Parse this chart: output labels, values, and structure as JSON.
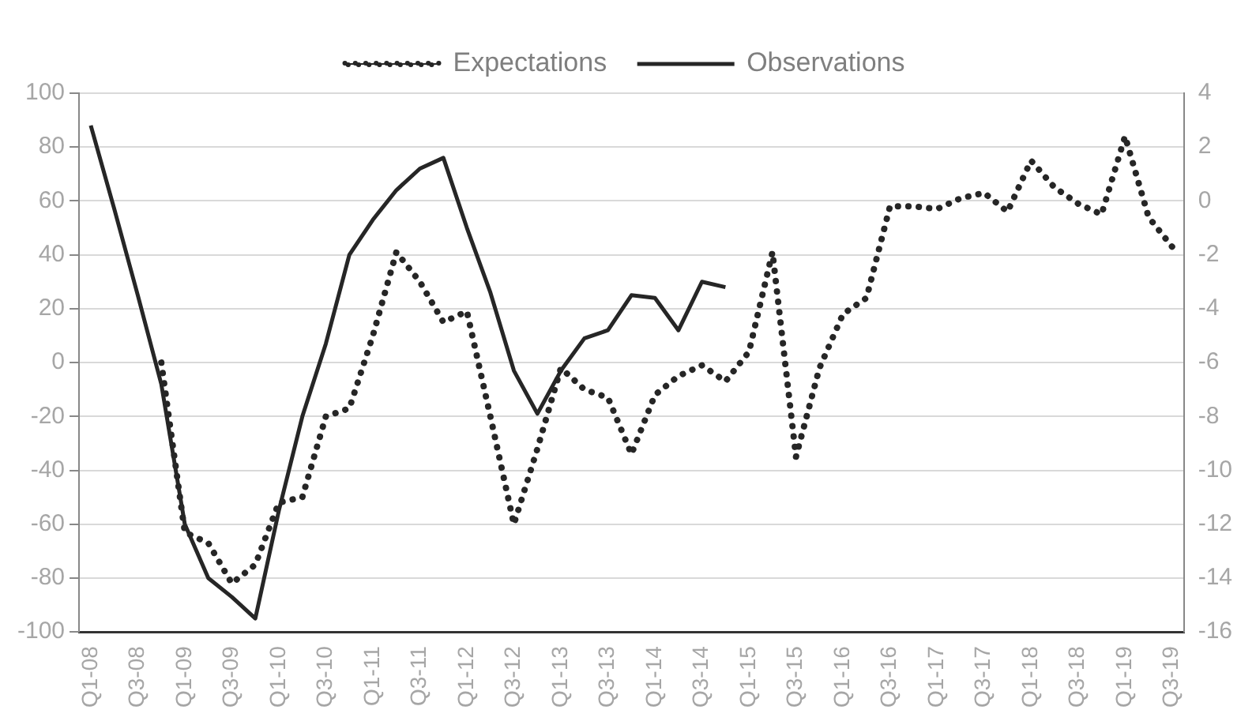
{
  "chart_data": {
    "type": "line",
    "categories": [
      "Q1-08",
      null,
      "Q3-08",
      null,
      "Q1-09",
      null,
      "Q3-09",
      null,
      "Q1-10",
      null,
      "Q3-10",
      null,
      "Q1-11",
      null,
      "Q3-11",
      null,
      "Q1-12",
      null,
      "Q3-12",
      null,
      "Q1-13",
      null,
      "Q3-13",
      null,
      "Q1-14",
      null,
      "Q3-14",
      null,
      "Q1-15",
      null,
      "Q3-15",
      null,
      "Q1-16",
      null,
      "Q3-16",
      null,
      "Q1-17",
      null,
      "Q3-17",
      null,
      "Q1-18",
      null,
      "Q3-18",
      null,
      "Q1-19",
      null,
      "Q3-19"
    ],
    "series": [
      {
        "name": "Expectations",
        "color": "#262626",
        "axis": "y2",
        "line_style": "dotted",
        "values": [
          null,
          null,
          null,
          -6,
          -12.3,
          -12.7,
          -14.2,
          -13.5,
          -11.2,
          -11,
          -8,
          -7.7,
          -5,
          -1.9,
          -3,
          -4.5,
          -4.1,
          -8,
          -12,
          -9.2,
          -6.2,
          -7,
          -7.3,
          -9.4,
          -7.2,
          -6.5,
          -6.1,
          -6.7,
          -5.6,
          -1.9,
          -9.5,
          -6.2,
          -4.2,
          -3.6,
          -0.2,
          -0.2,
          -0.3,
          0.1,
          0.3,
          -0.4,
          1.5,
          0.5,
          -0.1,
          -0.5,
          2.4,
          -0.6,
          -1.7
        ]
      },
      {
        "name": "Observations",
        "color": "#262626",
        "axis": "y",
        "line_style": "solid",
        "values": [
          88,
          57,
          25,
          -8,
          -60,
          -80,
          -87,
          -95,
          -55,
          -20,
          7,
          40,
          53,
          64,
          72,
          76,
          50,
          26,
          -3,
          -19,
          -3,
          9,
          12,
          25,
          24,
          12,
          30,
          28,
          null,
          null,
          null,
          null,
          null,
          null,
          null,
          null,
          null,
          null,
          null,
          null,
          null,
          null,
          null,
          null,
          null,
          null,
          null
        ]
      }
    ],
    "ylim": [
      -100,
      100
    ],
    "yticks": [
      -100,
      -80,
      -60,
      -40,
      -20,
      0,
      20,
      40,
      60,
      80,
      100
    ],
    "y2lim": [
      -16,
      4
    ],
    "y2ticks": [
      -16,
      -14,
      -12,
      -10,
      -8,
      -6,
      -4,
      -2,
      0,
      2,
      4
    ],
    "grid": "y",
    "legend": "top",
    "marker": "none"
  }
}
